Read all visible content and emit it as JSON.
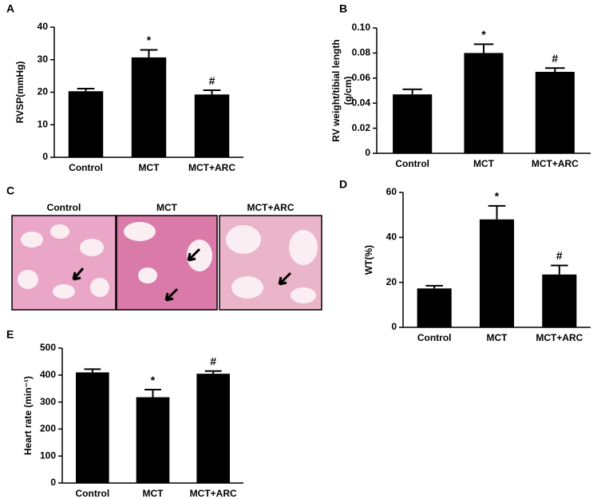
{
  "chart_data": [
    {
      "type": "bar",
      "panel": "A",
      "ylabel": [
        "RVSP(mmHg)"
      ],
      "categories": [
        "Control",
        "MCT",
        "MCT+ARC"
      ],
      "values": [
        20.3,
        30.7,
        19.3
      ],
      "errors": [
        0.8,
        2.3,
        1.3
      ],
      "annotations": [
        null,
        "*",
        "#"
      ],
      "color": "#000000",
      "ylim": [
        0,
        40
      ],
      "yticks": [
        0,
        10,
        20,
        30,
        40
      ]
    },
    {
      "type": "bar",
      "panel": "B",
      "ylabel": [
        "RV weight/tibial length",
        "(g/cm)"
      ],
      "categories": [
        "Control",
        "MCT",
        "MCT+ARC"
      ],
      "values": [
        0.047,
        0.08,
        0.065
      ],
      "errors": [
        0.004,
        0.007,
        0.003
      ],
      "annotations": [
        null,
        "*",
        "#"
      ],
      "color": "#000000",
      "ylim": [
        0,
        0.1
      ],
      "yticks": [
        0,
        0.02,
        0.04,
        0.06,
        0.08,
        {
          "value": 0.1,
          "label": "0.10"
        }
      ]
    },
    {
      "type": "bar",
      "panel": "D",
      "ylabel": [
        "WT(%)"
      ],
      "categories": [
        "Control",
        "MCT",
        "MCT+ARC"
      ],
      "values": [
        17.3,
        48,
        23.5
      ],
      "errors": [
        1.2,
        6,
        4
      ],
      "annotations": [
        null,
        "*",
        "#"
      ],
      "color": "#000000",
      "ylim": [
        0,
        60
      ],
      "yticks": [
        0,
        20,
        40,
        60
      ]
    },
    {
      "type": "bar",
      "panel": "E",
      "ylabel": [
        "Heart rate (min⁻¹)"
      ],
      "categories": [
        "Control",
        "MCT",
        "MCT+ARC"
      ],
      "values": [
        410,
        318,
        405
      ],
      "errors": [
        12,
        28,
        10
      ],
      "annotations": [
        null,
        "*",
        "#"
      ],
      "color": "#000000",
      "ylim": [
        0,
        500
      ],
      "yticks": [
        0,
        100,
        200,
        300,
        400,
        500
      ]
    }
  ],
  "panel_c": {
    "panel": "C",
    "images": [
      "Control",
      "MCT",
      "MCT+ARC"
    ]
  }
}
